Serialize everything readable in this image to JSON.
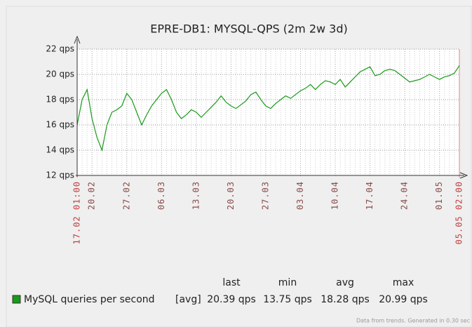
{
  "chart_data": {
    "type": "line",
    "title": "EPRE-DB1: MYSQL-QPS  (2m 2w 3d)",
    "x": [
      "17.02",
      "18.02",
      "19.02",
      "20.02",
      "21.02",
      "22.02",
      "23.02",
      "24.02",
      "25.02",
      "26.02",
      "27.02",
      "28.02",
      "01.03",
      "02.03",
      "03.03",
      "04.03",
      "05.03",
      "06.03",
      "07.03",
      "08.03",
      "09.03",
      "10.03",
      "11.03",
      "12.03",
      "13.03",
      "14.03",
      "15.03",
      "16.03",
      "17.03",
      "18.03",
      "19.03",
      "20.03",
      "21.03",
      "22.03",
      "23.03",
      "24.03",
      "25.03",
      "26.03",
      "27.03",
      "28.03",
      "29.03",
      "30.03",
      "31.03",
      "01.04",
      "02.04",
      "03.04",
      "04.04",
      "05.04",
      "06.04",
      "07.04",
      "08.04",
      "09.04",
      "10.04",
      "11.04",
      "12.04",
      "13.04",
      "14.04",
      "15.04",
      "16.04",
      "17.04",
      "18.04",
      "19.04",
      "20.04",
      "21.04",
      "22.04",
      "23.04",
      "24.04",
      "25.04",
      "26.04",
      "27.04",
      "28.04",
      "29.04",
      "30.04",
      "01.05",
      "02.05",
      "03.05",
      "04.05",
      "05.05"
    ],
    "series": [
      {
        "name": "MySQL queries per second",
        "color": "#1a9a1a",
        "values": [
          16.0,
          18.0,
          18.8,
          16.5,
          15.0,
          14.0,
          16.0,
          17.0,
          17.2,
          17.5,
          18.5,
          18.0,
          17.0,
          16.0,
          16.8,
          17.5,
          18.0,
          18.5,
          18.8,
          18.0,
          17.0,
          16.5,
          16.8,
          17.2,
          17.0,
          16.6,
          17.0,
          17.4,
          17.8,
          18.3,
          17.8,
          17.5,
          17.3,
          17.6,
          17.9,
          18.4,
          18.6,
          18.0,
          17.5,
          17.3,
          17.7,
          18.0,
          18.3,
          18.1,
          18.4,
          18.7,
          18.9,
          19.2,
          18.8,
          19.2,
          19.5,
          19.4,
          19.2,
          19.6,
          19.0,
          19.4,
          19.8,
          20.2,
          20.4,
          20.6,
          19.9,
          20.0,
          20.3,
          20.4,
          20.3,
          20.0,
          19.7,
          19.4,
          19.5,
          19.6,
          19.8,
          20.0,
          19.8,
          19.6,
          19.8,
          19.9,
          20.1,
          20.7
        ]
      }
    ],
    "ylim": [
      12,
      22
    ],
    "yticks": [
      {
        "value": 12,
        "label": "12 qps"
      },
      {
        "value": 14,
        "label": "14 qps"
      },
      {
        "value": 16,
        "label": "16 qps"
      },
      {
        "value": 18,
        "label": "18 qps"
      },
      {
        "value": 20,
        "label": "20 qps"
      },
      {
        "value": 22,
        "label": "22 qps"
      }
    ],
    "xticks": [
      {
        "value": "17.02",
        "label": "17.02 01:00"
      },
      "20.02",
      "27.02",
      "06.03",
      "13.03",
      "20.03",
      "27.03",
      "03.04",
      "10.04",
      "17.04",
      "24.04",
      "01.05",
      {
        "value": "05.05",
        "label": "05.05 02:00"
      }
    ],
    "grid": true,
    "legend_stats": {
      "function": "[avg]",
      "columns": [
        "last",
        "min",
        "avg",
        "max"
      ],
      "values": [
        "20.39 qps",
        "13.75 qps",
        "18.28 qps",
        "20.99 qps"
      ]
    },
    "footer": "Data from trends. Generated in 0.30 sec"
  }
}
